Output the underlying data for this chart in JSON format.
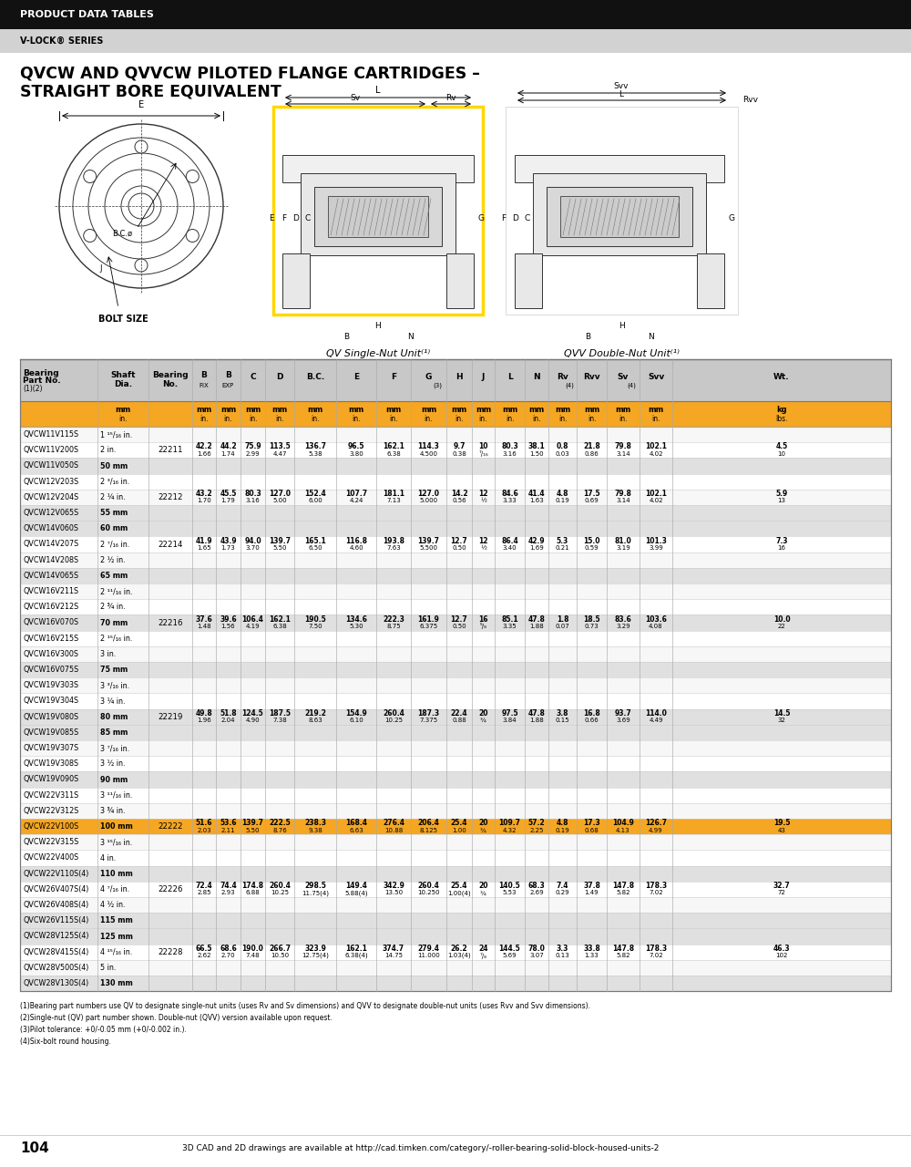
{
  "header_black": "PRODUCT DATA TABLES",
  "header_gray": "V-LOCK® SERIES",
  "title_line1": "QVCW AND QVVCW PILOTED FLANGE CARTRIDGES –",
  "title_line2": "STRAIGHT BORE EQUIVALENT",
  "orange_color": "#F5A623",
  "header_bg": "#1a1a1a",
  "gray_hdr_bg": "#c8c8c8",
  "gray_sub_bg": "#d4d4d4",
  "rows": [
    [
      "QVCW11V115S",
      "1 ¹⁵/₁₆ in.",
      "",
      "",
      "",
      "",
      "",
      "",
      "",
      "",
      "",
      "",
      "",
      "",
      "",
      "",
      "",
      "",
      "",
      ""
    ],
    [
      "QVCW11V200S",
      "2 in.",
      "22211",
      "42.2\n1.66",
      "44.2\n1.74",
      "75.9\n2.99",
      "113.5\n4.47",
      "136.7\n5.38",
      "96.5\n3.80",
      "162.1\n6.38",
      "114.3\n4.500",
      "9.7\n0.38",
      "10\n⁷/₁₆",
      "80.3\n3.16",
      "38.1\n1.50",
      "0.8\n0.03",
      "21.8\n0.86",
      "79.8\n3.14",
      "102.1\n4.02",
      "4.5\n10"
    ],
    [
      "QVCW11V050S",
      "50 mm",
      "",
      "",
      "",
      "",
      "",
      "",
      "",
      "",
      "",
      "",
      "",
      "",
      "",
      "",
      "",
      "",
      "",
      ""
    ],
    [
      "QVCW12V203S",
      "2 ³/₁₆ in.",
      "",
      "",
      "",
      "",
      "",
      "",
      "",
      "",
      "",
      "",
      "",
      "",
      "",
      "",
      "",
      "",
      "",
      ""
    ],
    [
      "QVCW12V204S",
      "2 ¼ in.",
      "22212",
      "43.2\n1.70",
      "45.5\n1.79",
      "80.3\n3.16",
      "127.0\n5.00",
      "152.4\n6.00",
      "107.7\n4.24",
      "181.1\n7.13",
      "127.0\n5.000",
      "14.2\n0.56",
      "12\n½",
      "84.6\n3.33",
      "41.4\n1.63",
      "4.8\n0.19",
      "17.5\n0.69",
      "79.8\n3.14",
      "102.1\n4.02",
      "5.9\n13"
    ],
    [
      "QVCW12V065S",
      "55 mm",
      "",
      "",
      "",
      "",
      "",
      "",
      "",
      "",
      "",
      "",
      "",
      "",
      "",
      "",
      "",
      "",
      "",
      ""
    ],
    [
      "QVCW14V060S",
      "60 mm",
      "",
      "",
      "",
      "",
      "",
      "",
      "",
      "",
      "",
      "",
      "",
      "",
      "",
      "",
      "",
      "",
      "",
      ""
    ],
    [
      "QVCW14V207S",
      "2 ⁷/₁₆ in.",
      "22214",
      "41.9\n1.65",
      "43.9\n1.73",
      "94.0\n3.70",
      "139.7\n5.50",
      "165.1\n6.50",
      "116.8\n4.60",
      "193.8\n7.63",
      "139.7\n5.500",
      "12.7\n0.50",
      "12\n½",
      "86.4\n3.40",
      "42.9\n1.69",
      "5.3\n0.21",
      "15.0\n0.59",
      "81.0\n3.19",
      "101.3\n3.99",
      "7.3\n16"
    ],
    [
      "QVCW14V208S",
      "2 ½ in.",
      "",
      "",
      "",
      "",
      "",
      "",
      "",
      "",
      "",
      "",
      "",
      "",
      "",
      "",
      "",
      "",
      "",
      ""
    ],
    [
      "QVCW14V065S",
      "65 mm",
      "",
      "",
      "",
      "",
      "",
      "",
      "",
      "",
      "",
      "",
      "",
      "",
      "",
      "",
      "",
      "",
      "",
      ""
    ],
    [
      "QVCW16V211S",
      "2 ¹¹/₁₆ in.",
      "",
      "",
      "",
      "",
      "",
      "",
      "",
      "",
      "",
      "",
      "",
      "",
      "",
      "",
      "",
      "",
      "",
      ""
    ],
    [
      "QVCW16V212S",
      "2 ¾ in.",
      "",
      "",
      "",
      "",
      "",
      "",
      "",
      "",
      "",
      "",
      "",
      "",
      "",
      "",
      "",
      "",
      "",
      ""
    ],
    [
      "QVCW16V070S",
      "70 mm",
      "22216",
      "37.6\n1.48",
      "39.6\n1.56",
      "106.4\n4.19",
      "162.1\n6.38",
      "190.5\n7.50",
      "134.6\n5.30",
      "222.3\n8.75",
      "161.9\n6.375",
      "12.7\n0.50",
      "16\n⁵/₈",
      "85.1\n3.35",
      "47.8\n1.88",
      "1.8\n0.07",
      "18.5\n0.73",
      "83.6\n3.29",
      "103.6\n4.08",
      "10.0\n22"
    ],
    [
      "QVCW16V215S",
      "2 ¹⁵/₁₆ in.",
      "",
      "",
      "",
      "",
      "",
      "",
      "",
      "",
      "",
      "",
      "",
      "",
      "",
      "",
      "",
      "",
      "",
      ""
    ],
    [
      "QVCW16V300S",
      "3 in.",
      "",
      "",
      "",
      "",
      "",
      "",
      "",
      "",
      "",
      "",
      "",
      "",
      "",
      "",
      "",
      "",
      "",
      ""
    ],
    [
      "QVCW16V075S",
      "75 mm",
      "",
      "",
      "",
      "",
      "",
      "",
      "",
      "",
      "",
      "",
      "",
      "",
      "",
      "",
      "",
      "",
      "",
      ""
    ],
    [
      "QVCW19V303S",
      "3 ³/₁₆ in.",
      "",
      "",
      "",
      "",
      "",
      "",
      "",
      "",
      "",
      "",
      "",
      "",
      "",
      "",
      "",
      "",
      "",
      ""
    ],
    [
      "QVCW19V304S",
      "3 ¼ in.",
      "",
      "",
      "",
      "",
      "",
      "",
      "",
      "",
      "",
      "",
      "",
      "",
      "",
      "",
      "",
      "",
      "",
      ""
    ],
    [
      "QVCW19V080S",
      "80 mm",
      "22219",
      "49.8\n1.96",
      "51.8\n2.04",
      "124.5\n4.90",
      "187.5\n7.38",
      "219.2\n8.63",
      "154.9\n6.10",
      "260.4\n10.25",
      "187.3\n7.375",
      "22.4\n0.88",
      "20\n¾",
      "97.5\n3.84",
      "47.8\n1.88",
      "3.8\n0.15",
      "16.8\n0.66",
      "93.7\n3.69",
      "114.0\n4.49",
      "14.5\n32"
    ],
    [
      "QVCW19V085S",
      "85 mm",
      "",
      "",
      "",
      "",
      "",
      "",
      "",
      "",
      "",
      "",
      "",
      "",
      "",
      "",
      "",
      "",
      "",
      ""
    ],
    [
      "QVCW19V307S",
      "3 ⁷/₁₆ in.",
      "",
      "",
      "",
      "",
      "",
      "",
      "",
      "",
      "",
      "",
      "",
      "",
      "",
      "",
      "",
      "",
      "",
      ""
    ],
    [
      "QVCW19V308S",
      "3 ½ in.",
      "",
      "",
      "",
      "",
      "",
      "",
      "",
      "",
      "",
      "",
      "",
      "",
      "",
      "",
      "",
      "",
      "",
      ""
    ],
    [
      "QVCW19V090S",
      "90 mm",
      "",
      "",
      "",
      "",
      "",
      "",
      "",
      "",
      "",
      "",
      "",
      "",
      "",
      "",
      "",
      "",
      "",
      ""
    ],
    [
      "QVCW22V311S",
      "3 ¹¹/₁₆ in.",
      "",
      "",
      "",
      "",
      "",
      "",
      "",
      "",
      "",
      "",
      "",
      "",
      "",
      "",
      "",
      "",
      "",
      ""
    ],
    [
      "QVCW22V312S",
      "3 ¾ in.",
      "",
      "",
      "",
      "",
      "",
      "",
      "",
      "",
      "",
      "",
      "",
      "",
      "",
      "",
      "",
      "",
      "",
      ""
    ],
    [
      "QVCW22V100S",
      "100 mm",
      "22222",
      "51.6\n2.03",
      "53.6\n2.11",
      "139.7\n5.50",
      "222.5\n8.76",
      "238.3\n9.38",
      "168.4\n6.63",
      "276.4\n10.88",
      "206.4\n8.125",
      "25.4\n1.00",
      "20\n¾",
      "109.7\n4.32",
      "57.2\n2.25",
      "4.8\n0.19",
      "17.3\n0.68",
      "104.9\n4.13",
      "126.7\n4.99",
      "19.5\n43"
    ],
    [
      "QVCW22V315S",
      "3 ¹⁵/₁₆ in.",
      "",
      "",
      "",
      "",
      "",
      "",
      "",
      "",
      "",
      "",
      "",
      "",
      "",
      "",
      "",
      "",
      "",
      ""
    ],
    [
      "QVCW22V400S",
      "4 in.",
      "",
      "",
      "",
      "",
      "",
      "",
      "",
      "",
      "",
      "",
      "",
      "",
      "",
      "",
      "",
      "",
      "",
      ""
    ],
    [
      "QVCW22V110S(4)",
      "110 mm",
      "",
      "",
      "",
      "",
      "",
      "",
      "",
      "",
      "",
      "",
      "",
      "",
      "",
      "",
      "",
      "",
      "",
      ""
    ],
    [
      "QVCW26V407S(4)",
      "4 ⁷/₁₆ in.",
      "22226",
      "72.4\n2.85",
      "74.4\n2.93",
      "174.8\n6.88",
      "260.4\n10.25",
      "298.5\n11.75(4)",
      "149.4\n5.88(4)",
      "342.9\n13.50",
      "260.4\n10.250",
      "25.4\n1.00(4)",
      "20\n¾",
      "140.5\n5.53",
      "68.3\n2.69",
      "7.4\n0.29",
      "37.8\n1.49",
      "147.8\n5.82",
      "178.3\n7.02",
      "32.7\n72"
    ],
    [
      "QVCW26V408S(4)",
      "4 ½ in.",
      "",
      "",
      "",
      "",
      "",
      "",
      "",
      "",
      "",
      "",
      "",
      "",
      "",
      "",
      "",
      "",
      "",
      ""
    ],
    [
      "QVCW26V115S(4)",
      "115 mm",
      "",
      "",
      "",
      "",
      "",
      "",
      "",
      "",
      "",
      "",
      "",
      "",
      "",
      "",
      "",
      "",
      "",
      ""
    ],
    [
      "QVCW28V125S(4)",
      "125 mm",
      "",
      "",
      "",
      "",
      "",
      "",
      "",
      "",
      "",
      "",
      "",
      "",
      "",
      "",
      "",
      "",
      "",
      ""
    ],
    [
      "QVCW28V415S(4)",
      "4 ¹⁵/₁₆ in.",
      "22228",
      "66.5\n2.62",
      "68.6\n2.70",
      "190.0\n7.48",
      "266.7\n10.50",
      "323.9\n12.75(4)",
      "162.1\n6.38(4)",
      "374.7\n14.75",
      "279.4\n11.000",
      "26.2\n1.03(4)",
      "24\n⁷/₈",
      "144.5\n5.69",
      "78.0\n3.07",
      "3.3\n0.13",
      "33.8\n1.33",
      "147.8\n5.82",
      "178.3\n7.02",
      "46.3\n102"
    ],
    [
      "QVCW28V500S(4)",
      "5 in.",
      "",
      "",
      "",
      "",
      "",
      "",
      "",
      "",
      "",
      "",
      "",
      "",
      "",
      "",
      "",
      "",
      "",
      ""
    ],
    [
      "QVCW28V130S(4)",
      "130 mm",
      "",
      "",
      "",
      "",
      "",
      "",
      "",
      "",
      "",
      "",
      "",
      "",
      "",
      "",
      "",
      "",
      "",
      ""
    ]
  ],
  "footnotes": [
    "(1)Bearing part numbers use QV to designate single-nut units (uses Rv and Sv dimensions) and QVV to designate double-nut units (uses Rvv and Svv dimensions).",
    "(2)Single-nut (QV) part number shown. Double-nut (QVV) version available upon request.",
    "(3)Pilot tolerance: +0/-0.05 mm (+0/-0.002 in.).",
    "(4)Six-bolt round housing."
  ],
  "page_number": "104",
  "page_footer": "3D CAD and 2D drawings are available at http://cad.timken.com/category/-roller-bearing-solid-block-housed-units-2",
  "highlighted_row": "QVCW22V100S",
  "mm_rows": [
    "QVCW11V050S",
    "QVCW12V065S",
    "QVCW14V060S",
    "QVCW14V065S",
    "QVCW16V070S",
    "QVCW16V075S",
    "QVCW19V080S",
    "QVCW19V085S",
    "QVCW19V090S",
    "QVCW22V100S",
    "QVCW22V110S(4)",
    "QVCW26V115S(4)",
    "QVCW28V125S(4)",
    "QVCW28V130S(4)"
  ]
}
